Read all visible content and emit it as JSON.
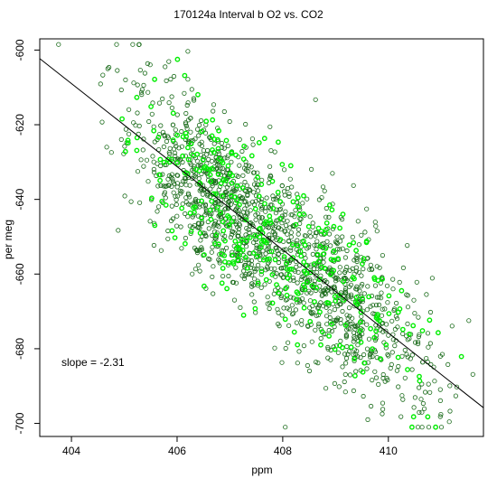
{
  "chart_data": {
    "type": "scatter",
    "title": "170124a   Interval b O2 vs. CO2",
    "xlabel": "ppm",
    "ylabel": "per meg",
    "xlim": [
      403.4,
      411.8
    ],
    "ylim": [
      -703.5,
      -597.0
    ],
    "x_ticks": [
      404,
      406,
      408,
      410
    ],
    "y_ticks": [
      -700,
      -680,
      -660,
      -640,
      -620,
      -600
    ],
    "x_tick_labels": [
      "404",
      "406",
      "408",
      "410"
    ],
    "y_tick_labels": [
      "-700",
      "-680",
      "-660",
      "-640",
      "-620",
      "-600"
    ],
    "annotation": "slope =  -2.31",
    "slope": -2.31,
    "fit_line": {
      "x": [
        403.4,
        411.8
      ],
      "y": [
        -602.3,
        -695.8
      ]
    },
    "grid": false,
    "colors": {
      "dark_series": "#1a6b1a",
      "bright_series": "#00ee00",
      "fit_line": "#000000"
    },
    "point_groups": {
      "description_free": true,
      "dark_count": 1450,
      "bright_count": 330
    }
  }
}
